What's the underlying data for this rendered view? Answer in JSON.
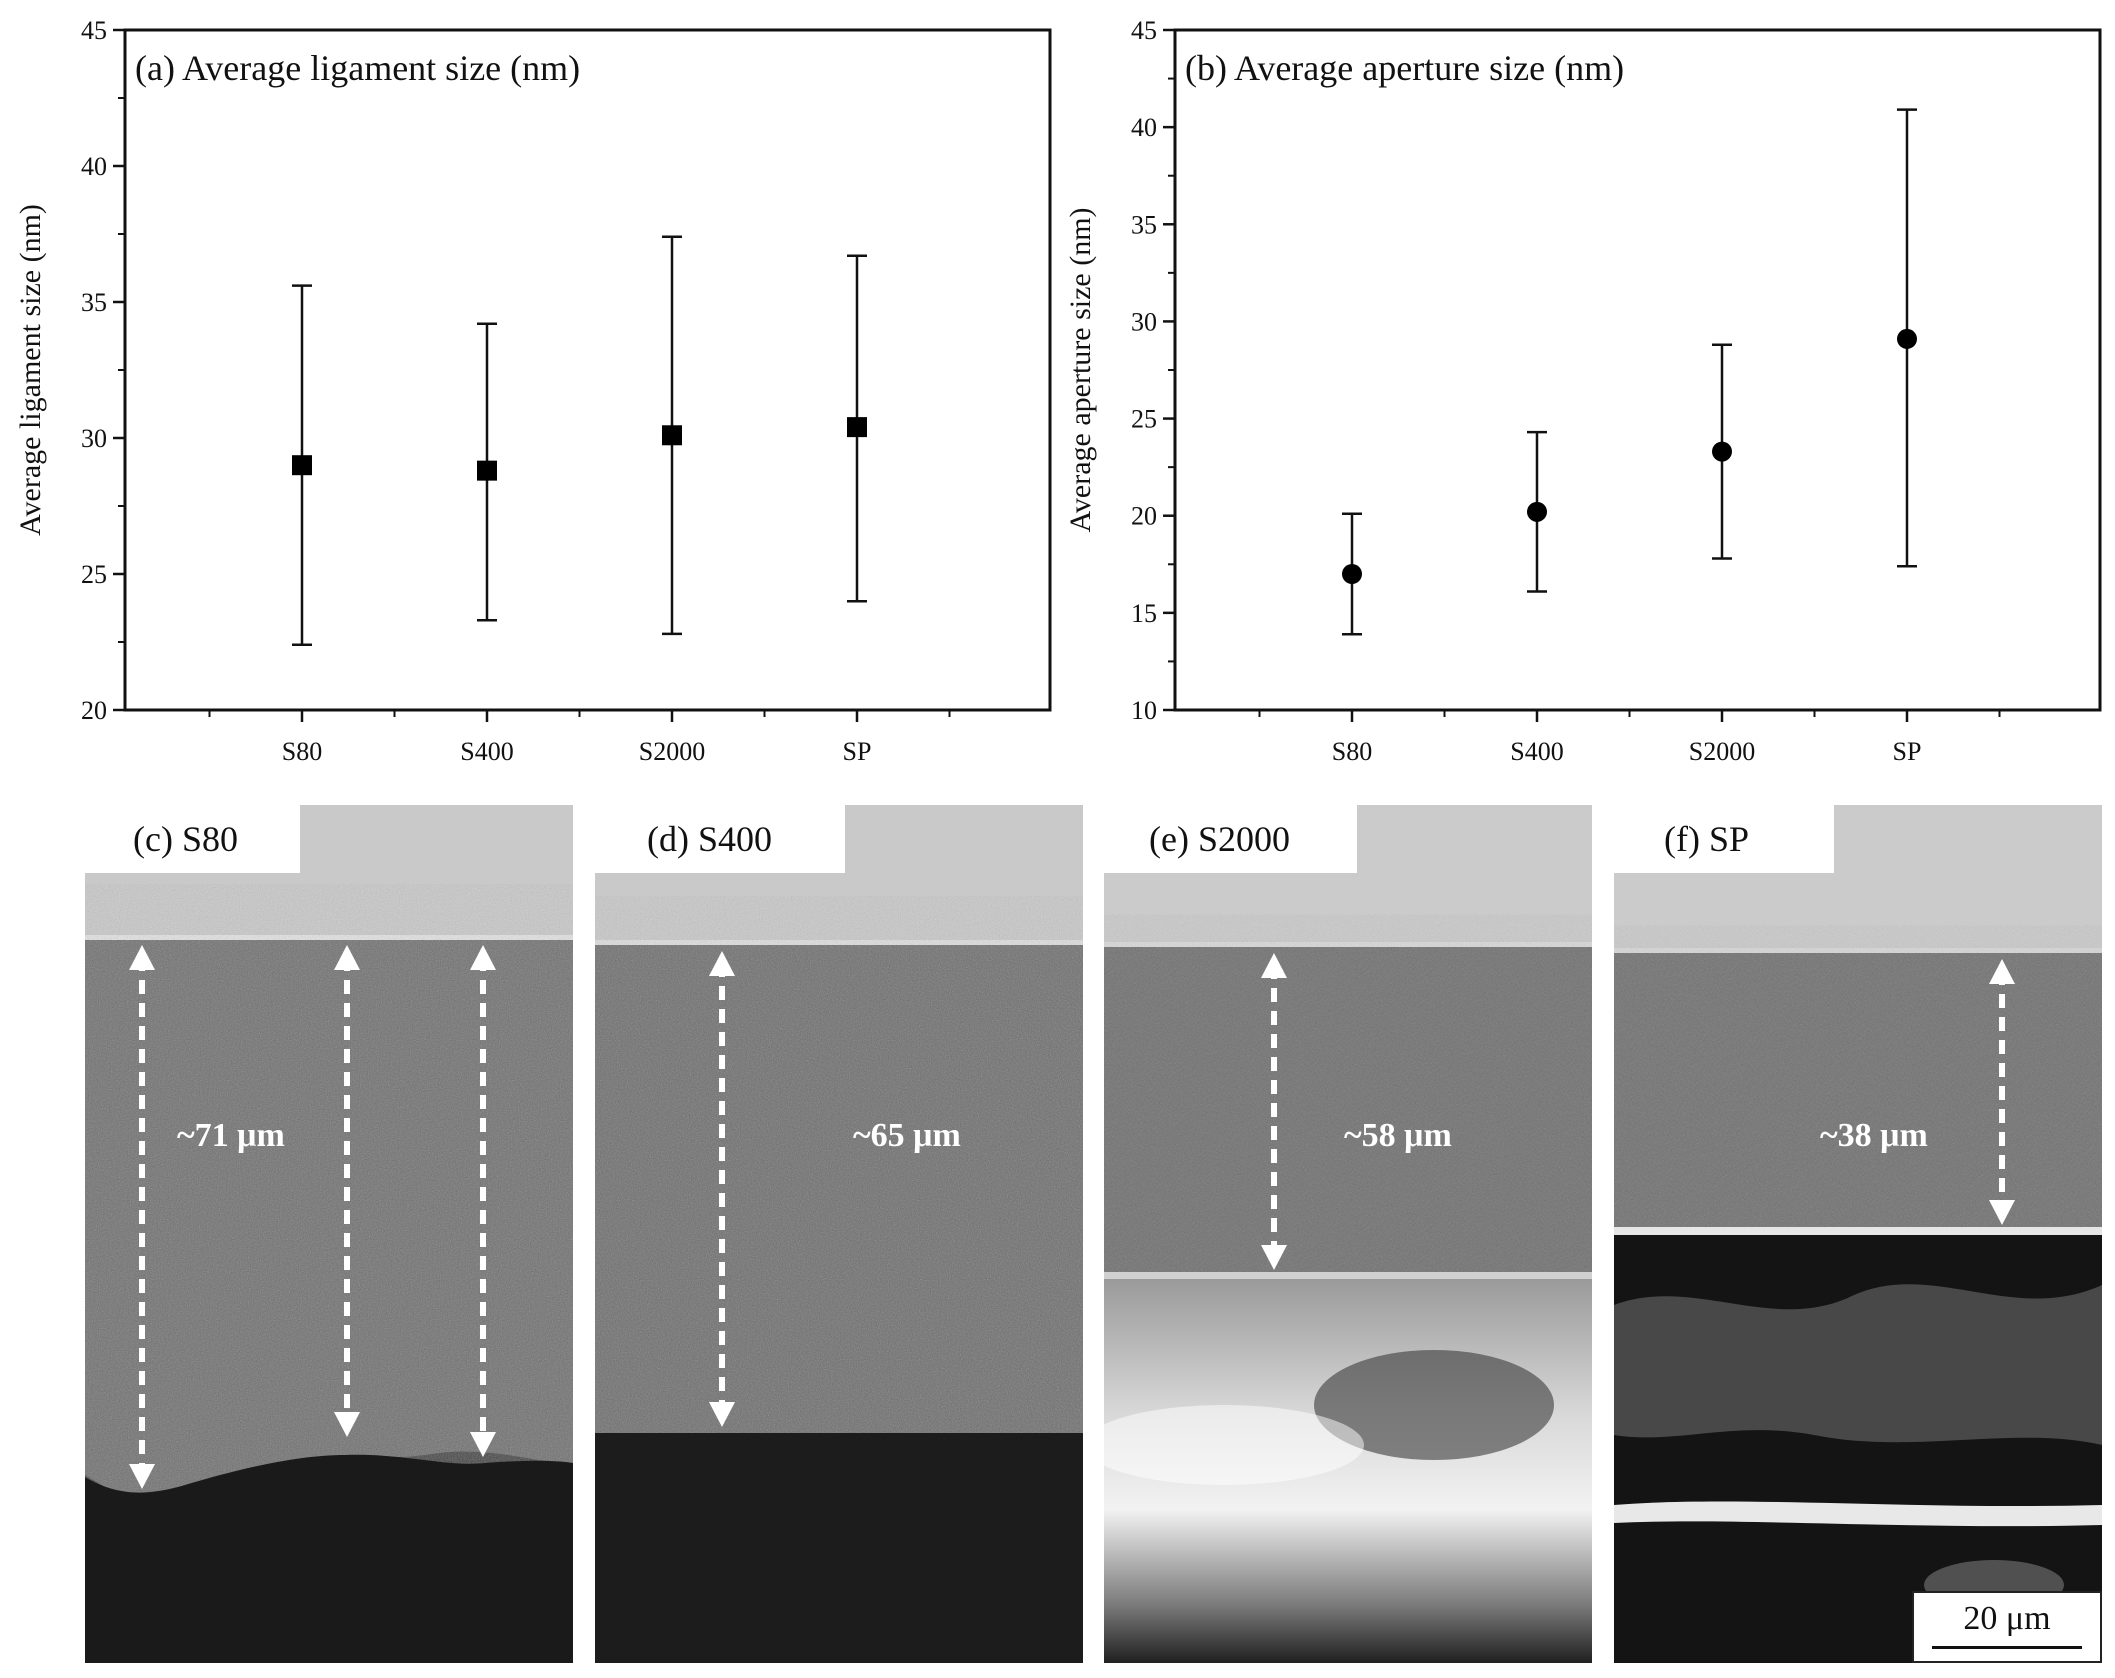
{
  "chart_data": [
    {
      "type": "scatter",
      "panel": "(a)",
      "title": "(a)  Average ligament size   (nm)",
      "ylabel": "Average  ligament size (nm)",
      "ylim": [
        20,
        45
      ],
      "yticks": [
        20,
        25,
        30,
        35,
        40,
        45
      ],
      "categories": [
        "S80",
        "S400",
        "S2000",
        "SP"
      ],
      "marker": "square",
      "series": [
        {
          "values": [
            29.0,
            28.8,
            30.1,
            30.4
          ],
          "err_low": [
            22.4,
            23.3,
            22.8,
            24.0
          ],
          "err_high": [
            35.6,
            34.2,
            37.4,
            36.7
          ]
        }
      ]
    },
    {
      "type": "scatter",
      "panel": "(b)",
      "title": "(b)  Average aperture size   (nm)",
      "ylabel": "Average aperture size (nm)",
      "ylim": [
        10,
        45
      ],
      "yticks": [
        10,
        15,
        20,
        25,
        30,
        35,
        40,
        45
      ],
      "categories": [
        "S80",
        "S400",
        "S2000",
        "SP"
      ],
      "marker": "circle",
      "series": [
        {
          "values": [
            17.0,
            20.2,
            23.3,
            29.1
          ],
          "err_low": [
            13.9,
            16.1,
            17.8,
            17.4
          ],
          "err_high": [
            20.1,
            24.3,
            28.8,
            40.9
          ]
        }
      ]
    }
  ],
  "images": [
    {
      "label": "(c) S80",
      "measurement": "~71 μm"
    },
    {
      "label": "(d) S400",
      "measurement": "~65 μm"
    },
    {
      "label": "(e) S2000",
      "measurement": "~58 μm"
    },
    {
      "label": "(f) SP",
      "measurement": "~38 μm",
      "scale_bar": "20 μm"
    }
  ]
}
